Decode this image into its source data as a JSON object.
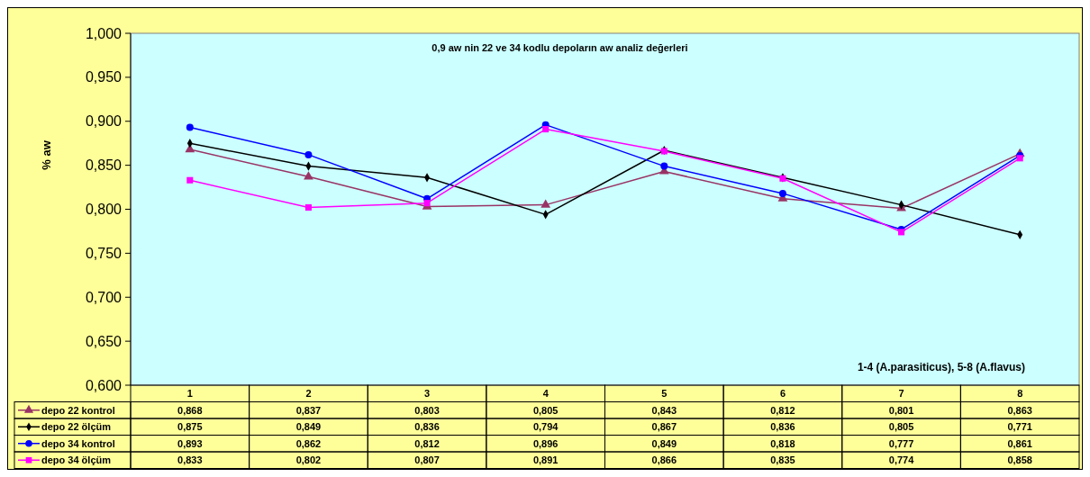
{
  "chart_data": {
    "type": "line",
    "title": "0,9 aw nin 22 ve 34 kodlu depoların aw analiz değerleri",
    "ylabel": "% aw",
    "annotations": [
      "1-4 (A.parasiticus), 5-8 (A.flavus)"
    ],
    "categories": [
      "1",
      "2",
      "3",
      "4",
      "5",
      "6",
      "7",
      "8"
    ],
    "ylim": [
      0.6,
      1.0
    ],
    "yticks": [
      {
        "value": 0.6,
        "label": "0,600"
      },
      {
        "value": 0.65,
        "label": "0,650"
      },
      {
        "value": 0.7,
        "label": "0,700"
      },
      {
        "value": 0.75,
        "label": "0,750"
      },
      {
        "value": 0.8,
        "label": "0,800"
      },
      {
        "value": 0.85,
        "label": "0,850"
      },
      {
        "value": 0.9,
        "label": "0,900"
      },
      {
        "value": 0.95,
        "label": "0,950"
      },
      {
        "value": 1.0,
        "label": "1,000"
      }
    ],
    "legend": "bottom left",
    "series": [
      {
        "name": "depo 22 kontrol",
        "color": "#993366",
        "marker": "triangle",
        "values": [
          0.868,
          0.837,
          0.803,
          0.805,
          0.843,
          0.812,
          0.801,
          0.863
        ],
        "value_labels": [
          "0,868",
          "0,837",
          "0,803",
          "0,805",
          "0,843",
          "0,812",
          "0,801",
          "0,863"
        ]
      },
      {
        "name": "depo 22 ölçüm",
        "color": "#000000",
        "marker": "diamond",
        "values": [
          0.875,
          0.849,
          0.836,
          0.794,
          0.867,
          0.836,
          0.805,
          0.771
        ],
        "value_labels": [
          "0,875",
          "0,849",
          "0,836",
          "0,794",
          "0,867",
          "0,836",
          "0,805",
          "0,771"
        ]
      },
      {
        "name": "depo 34 kontrol",
        "color": "#0000ff",
        "marker": "circle",
        "values": [
          0.893,
          0.862,
          0.812,
          0.896,
          0.849,
          0.818,
          0.777,
          0.861
        ],
        "value_labels": [
          "0,893",
          "0,862",
          "0,812",
          "0,896",
          "0,849",
          "0,818",
          "0,777",
          "0,861"
        ]
      },
      {
        "name": "depo 34 ölçüm",
        "color": "#ff00ff",
        "marker": "square",
        "values": [
          0.833,
          0.802,
          0.807,
          0.891,
          0.866,
          0.835,
          0.774,
          0.858
        ],
        "value_labels": [
          "0,833",
          "0,802",
          "0,807",
          "0,891",
          "0,866",
          "0,835",
          "0,774",
          "0,858"
        ]
      }
    ]
  }
}
